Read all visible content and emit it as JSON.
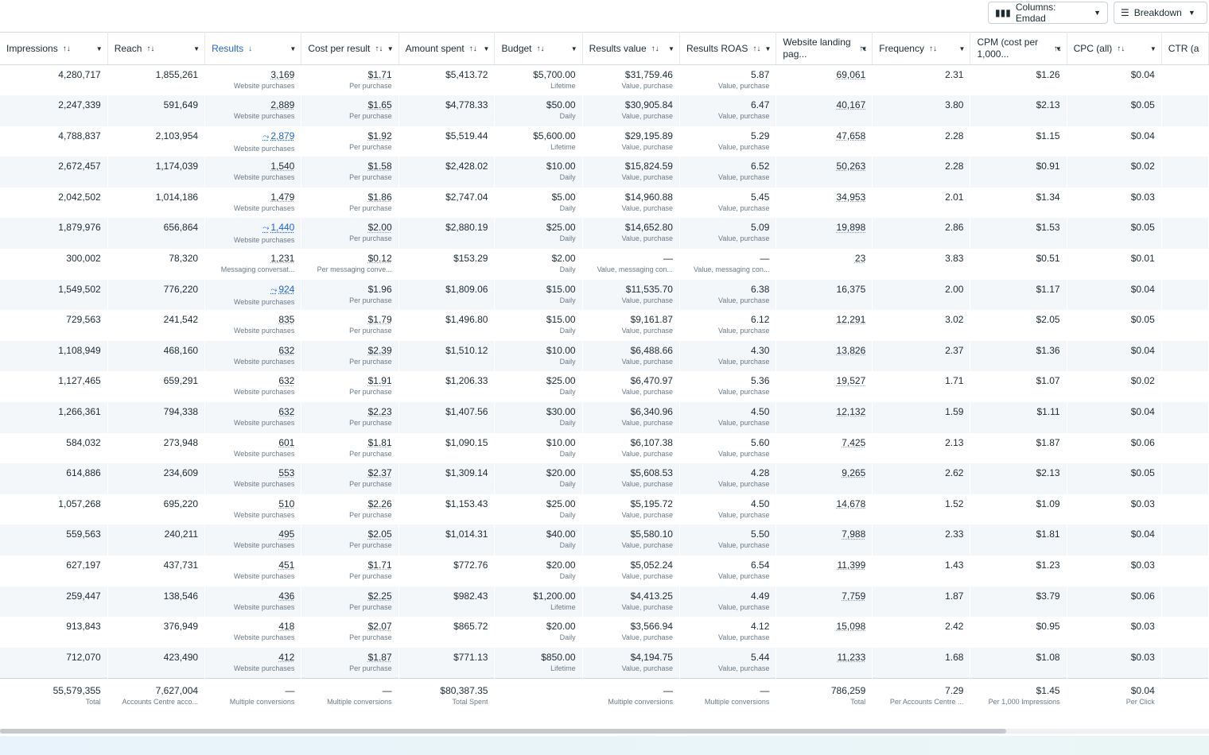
{
  "toolbar": {
    "columns_label": "Columns: Emdad",
    "columns_icon": "columns-icon",
    "breakdown_label": "Breakdown",
    "breakdown_icon": "breakdown-icon"
  },
  "columns": [
    {
      "key": "impressions",
      "label": "Impressions",
      "sort": "↑↓"
    },
    {
      "key": "reach",
      "label": "Reach",
      "sort": "↑↓"
    },
    {
      "key": "results",
      "label": "Results",
      "sort": "↓",
      "active": true
    },
    {
      "key": "cpr",
      "label": "Cost per result",
      "sort": "↑↓"
    },
    {
      "key": "spent",
      "label": "Amount spent",
      "sort": "↑↓"
    },
    {
      "key": "budget",
      "label": "Budget",
      "sort": "↑↓"
    },
    {
      "key": "rv",
      "label": "Results value",
      "sort": "↑↓"
    },
    {
      "key": "roas",
      "label": "Results ROAS",
      "sort": "↑↓"
    },
    {
      "key": "wlp",
      "label": "Website landing pag...",
      "sort": "↑↓"
    },
    {
      "key": "freq",
      "label": "Frequency",
      "sort": "↑↓"
    },
    {
      "key": "cpm",
      "label": "CPM (cost per 1,000...",
      "sort": "↑↓"
    },
    {
      "key": "cpc",
      "label": "CPC (all)",
      "sort": "↑↓"
    },
    {
      "key": "ctr",
      "label": "CTR (a",
      "sort": ""
    }
  ],
  "rows": [
    [
      "4,280,717",
      "1,855,261",
      "3,169",
      "Website purchases",
      "$1.71",
      "Per purchase",
      "$5,413.72",
      "$5,700.00",
      "Lifetime",
      "$31,759.46",
      "Value, purchase",
      "5.87",
      "Value, purchase",
      "69,061",
      "2.31",
      "$1.26",
      "$0.04",
      ""
    ],
    [
      "2,247,339",
      "591,649",
      "2,889",
      "Website purchases",
      "$1.65",
      "Per purchase",
      "$4,778.33",
      "$50.00",
      "Daily",
      "$30,905.84",
      "Value, purchase",
      "6.47",
      "Value, purchase",
      "40,167",
      "3.80",
      "$2.13",
      "$0.05",
      ""
    ],
    [
      "4,788,837",
      "2,103,954",
      "2,879",
      "Website purchases",
      "$1.92",
      "Per purchase",
      "$5,519.44",
      "$5,600.00",
      "Lifetime",
      "$29,195.89",
      "Value, purchase",
      "5.29",
      "Value, purchase",
      "47,658",
      "2.28",
      "$1.15",
      "$0.04",
      "trend"
    ],
    [
      "2,672,457",
      "1,174,039",
      "1,540",
      "Website purchases",
      "$1.58",
      "Per purchase",
      "$2,428.02",
      "$10.00",
      "Daily",
      "$15,824.59",
      "Value, purchase",
      "6.52",
      "Value, purchase",
      "50,263",
      "2.28",
      "$0.91",
      "$0.02",
      ""
    ],
    [
      "2,042,502",
      "1,014,186",
      "1,479",
      "Website purchases",
      "$1.86",
      "Per purchase",
      "$2,747.04",
      "$5.00",
      "Daily",
      "$14,960.88",
      "Value, purchase",
      "5.45",
      "Value, purchase",
      "34,953",
      "2.01",
      "$1.34",
      "$0.03",
      ""
    ],
    [
      "1,879,976",
      "656,864",
      "1,440",
      "Website purchases",
      "$2.00",
      "Per purchase",
      "$2,880.19",
      "$25.00",
      "Daily",
      "$14,652.80",
      "Value, purchase",
      "5.09",
      "Value, purchase",
      "19,898",
      "2.86",
      "$1.53",
      "$0.05",
      "trend"
    ],
    [
      "300,002",
      "78,320",
      "1,231",
      "Messaging conversat...",
      "$0.12",
      "Per messaging conve...",
      "$153.29",
      "$2.00",
      "Daily",
      "—",
      "Value, messaging con...",
      "—",
      "Value, messaging con...",
      "23",
      "3.83",
      "$0.51",
      "$0.01",
      ""
    ],
    [
      "1,549,502",
      "776,220",
      "924",
      "Website purchases",
      "$1.96",
      "Per purchase",
      "$1,809.06",
      "$15.00",
      "Daily",
      "$11,535.70",
      "Value, purchase",
      "6.38",
      "Value, purchase",
      "16,375",
      "2.00",
      "$1.17",
      "$0.04",
      "trend"
    ],
    [
      "729,563",
      "241,542",
      "835",
      "Website purchases",
      "$1.79",
      "Per purchase",
      "$1,496.80",
      "$15.00",
      "Daily",
      "$9,161.87",
      "Value, purchase",
      "6.12",
      "Value, purchase",
      "12,291",
      "3.02",
      "$2.05",
      "$0.05",
      ""
    ],
    [
      "1,108,949",
      "468,160",
      "632",
      "Website purchases",
      "$2.39",
      "Per purchase",
      "$1,510.12",
      "$10.00",
      "Daily",
      "$6,488.66",
      "Value, purchase",
      "4.30",
      "Value, purchase",
      "13,826",
      "2.37",
      "$1.36",
      "$0.04",
      ""
    ],
    [
      "1,127,465",
      "659,291",
      "632",
      "Website purchases",
      "$1.91",
      "Per purchase",
      "$1,206.33",
      "$25.00",
      "Daily",
      "$6,470.97",
      "Value, purchase",
      "5.36",
      "Value, purchase",
      "19,527",
      "1.71",
      "$1.07",
      "$0.02",
      ""
    ],
    [
      "1,266,361",
      "794,338",
      "632",
      "Website purchases",
      "$2.23",
      "Per purchase",
      "$1,407.56",
      "$30.00",
      "Daily",
      "$6,340.96",
      "Value, purchase",
      "4.50",
      "Value, purchase",
      "12,132",
      "1.59",
      "$1.11",
      "$0.04",
      ""
    ],
    [
      "584,032",
      "273,948",
      "601",
      "Website purchases",
      "$1.81",
      "Per purchase",
      "$1,090.15",
      "$10.00",
      "Daily",
      "$6,107.38",
      "Value, purchase",
      "5.60",
      "Value, purchase",
      "7,425",
      "2.13",
      "$1.87",
      "$0.06",
      ""
    ],
    [
      "614,886",
      "234,609",
      "553",
      "Website purchases",
      "$2.37",
      "Per purchase",
      "$1,309.14",
      "$20.00",
      "Daily",
      "$5,608.53",
      "Value, purchase",
      "4.28",
      "Value, purchase",
      "9,265",
      "2.62",
      "$2.13",
      "$0.05",
      ""
    ],
    [
      "1,057,268",
      "695,220",
      "510",
      "Website purchases",
      "$2.26",
      "Per purchase",
      "$1,153.43",
      "$25.00",
      "Daily",
      "$5,195.72",
      "Value, purchase",
      "4.50",
      "Value, purchase",
      "14,678",
      "1.52",
      "$1.09",
      "$0.03",
      ""
    ],
    [
      "559,563",
      "240,211",
      "495",
      "Website purchases",
      "$2.05",
      "Per purchase",
      "$1,014.31",
      "$40.00",
      "Daily",
      "$5,580.10",
      "Value, purchase",
      "5.50",
      "Value, purchase",
      "7,988",
      "2.33",
      "$1.81",
      "$0.04",
      ""
    ],
    [
      "627,197",
      "437,731",
      "451",
      "Website purchases",
      "$1.71",
      "Per purchase",
      "$772.76",
      "$20.00",
      "Daily",
      "$5,052.24",
      "Value, purchase",
      "6.54",
      "Value, purchase",
      "11,399",
      "1.43",
      "$1.23",
      "$0.03",
      ""
    ],
    [
      "259,447",
      "138,546",
      "436",
      "Website purchases",
      "$2.25",
      "Per purchase",
      "$982.43",
      "$1,200.00",
      "Lifetime",
      "$4,413.25",
      "Value, purchase",
      "4.49",
      "Value, purchase",
      "7,759",
      "1.87",
      "$3.79",
      "$0.06",
      ""
    ],
    [
      "913,843",
      "376,949",
      "418",
      "Website purchases",
      "$2.07",
      "Per purchase",
      "$865.72",
      "$20.00",
      "Daily",
      "$3,566.94",
      "Value, purchase",
      "4.12",
      "Value, purchase",
      "15,098",
      "2.42",
      "$0.95",
      "$0.03",
      ""
    ],
    [
      "712,070",
      "423,490",
      "412",
      "Website purchases",
      "$1.87",
      "Per purchase",
      "$771.13",
      "$850.00",
      "Lifetime",
      "$4,194.75",
      "Value, purchase",
      "5.44",
      "Value, purchase",
      "11,233",
      "1.68",
      "$1.08",
      "$0.03",
      ""
    ]
  ],
  "totals": {
    "impressions": "55,579,355",
    "impressions_sub": "Total",
    "reach": "7,627,004",
    "reach_sub": "Accounts Centre acco...",
    "results": "—",
    "results_sub": "Multiple conversions",
    "cpr": "—",
    "cpr_sub": "Multiple conversions",
    "spent": "$80,387.35",
    "spent_sub": "Total Spent",
    "budget": "",
    "budget_sub": "",
    "rv": "—",
    "rv_sub": "Multiple conversions",
    "roas": "—",
    "roas_sub": "Multiple conversions",
    "wlp": "786,259",
    "wlp_sub": "Total",
    "freq": "7.29",
    "freq_sub": "Per Accounts Centre ...",
    "cpm": "$1.45",
    "cpm_sub": "Per 1,000 Impressions",
    "cpc": "$0.04",
    "cpc_sub": "Per Click"
  }
}
